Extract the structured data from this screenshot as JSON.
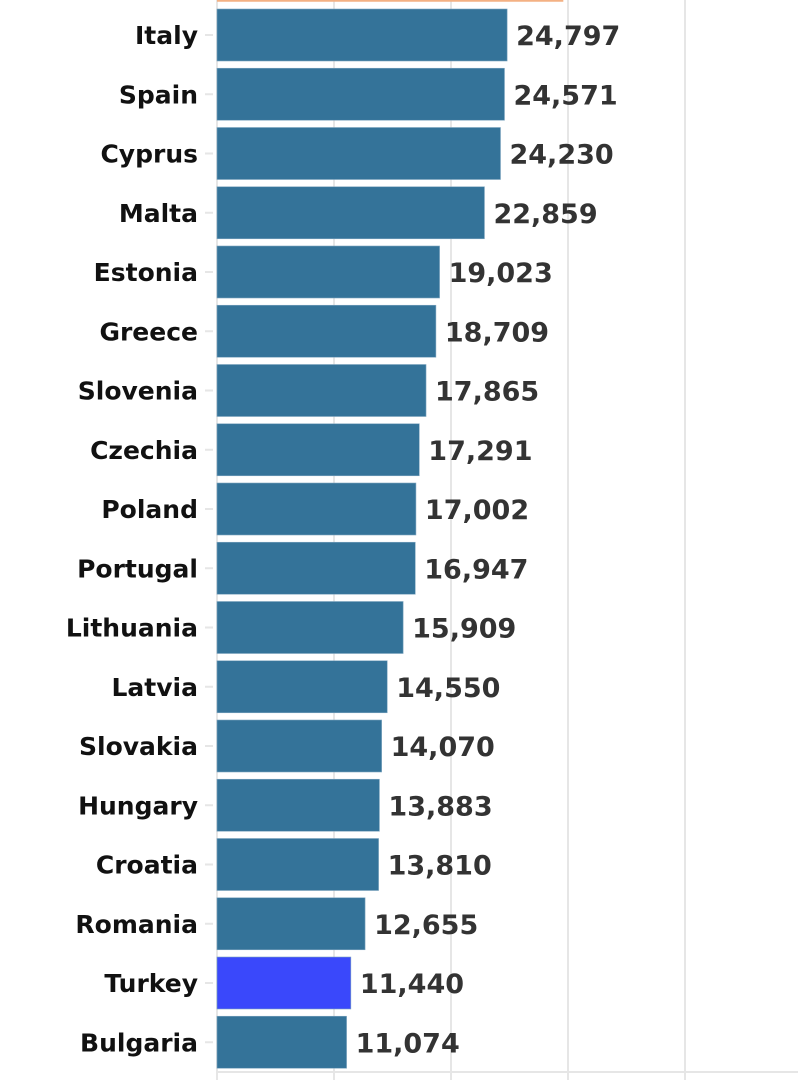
{
  "chart_data": {
    "type": "bar",
    "orientation": "horizontal",
    "title": "",
    "xlabel": "",
    "ylabel": "",
    "xlim": [
      0,
      50000
    ],
    "grid": true,
    "gridline_step": 10000,
    "partially_visible_top_bar": {
      "value": 29600,
      "color": "#f4b183"
    },
    "categories": [
      "Italy",
      "Spain",
      "Cyprus",
      "Malta",
      "Estonia",
      "Greece",
      "Slovenia",
      "Czechia",
      "Poland",
      "Portugal",
      "Lithuania",
      "Latvia",
      "Slovakia",
      "Hungary",
      "Croatia",
      "Romania",
      "Turkey",
      "Bulgaria"
    ],
    "values": [
      24797,
      24571,
      24230,
      22859,
      19023,
      18709,
      17865,
      17291,
      17002,
      16947,
      15909,
      14550,
      14070,
      13883,
      13810,
      12655,
      11440,
      11074
    ],
    "value_labels": [
      "24,797",
      "24,571",
      "24,230",
      "22,859",
      "19,023",
      "18,709",
      "17,865",
      "17,291",
      "17,002",
      "16,947",
      "15,909",
      "14,550",
      "14,070",
      "13,883",
      "13,810",
      "12,655",
      "11,440",
      "11,074"
    ],
    "highlight": "Turkey",
    "colors": {
      "default": "#347399",
      "highlight": "#3a48fb",
      "grid": "#e6e6e6"
    }
  }
}
